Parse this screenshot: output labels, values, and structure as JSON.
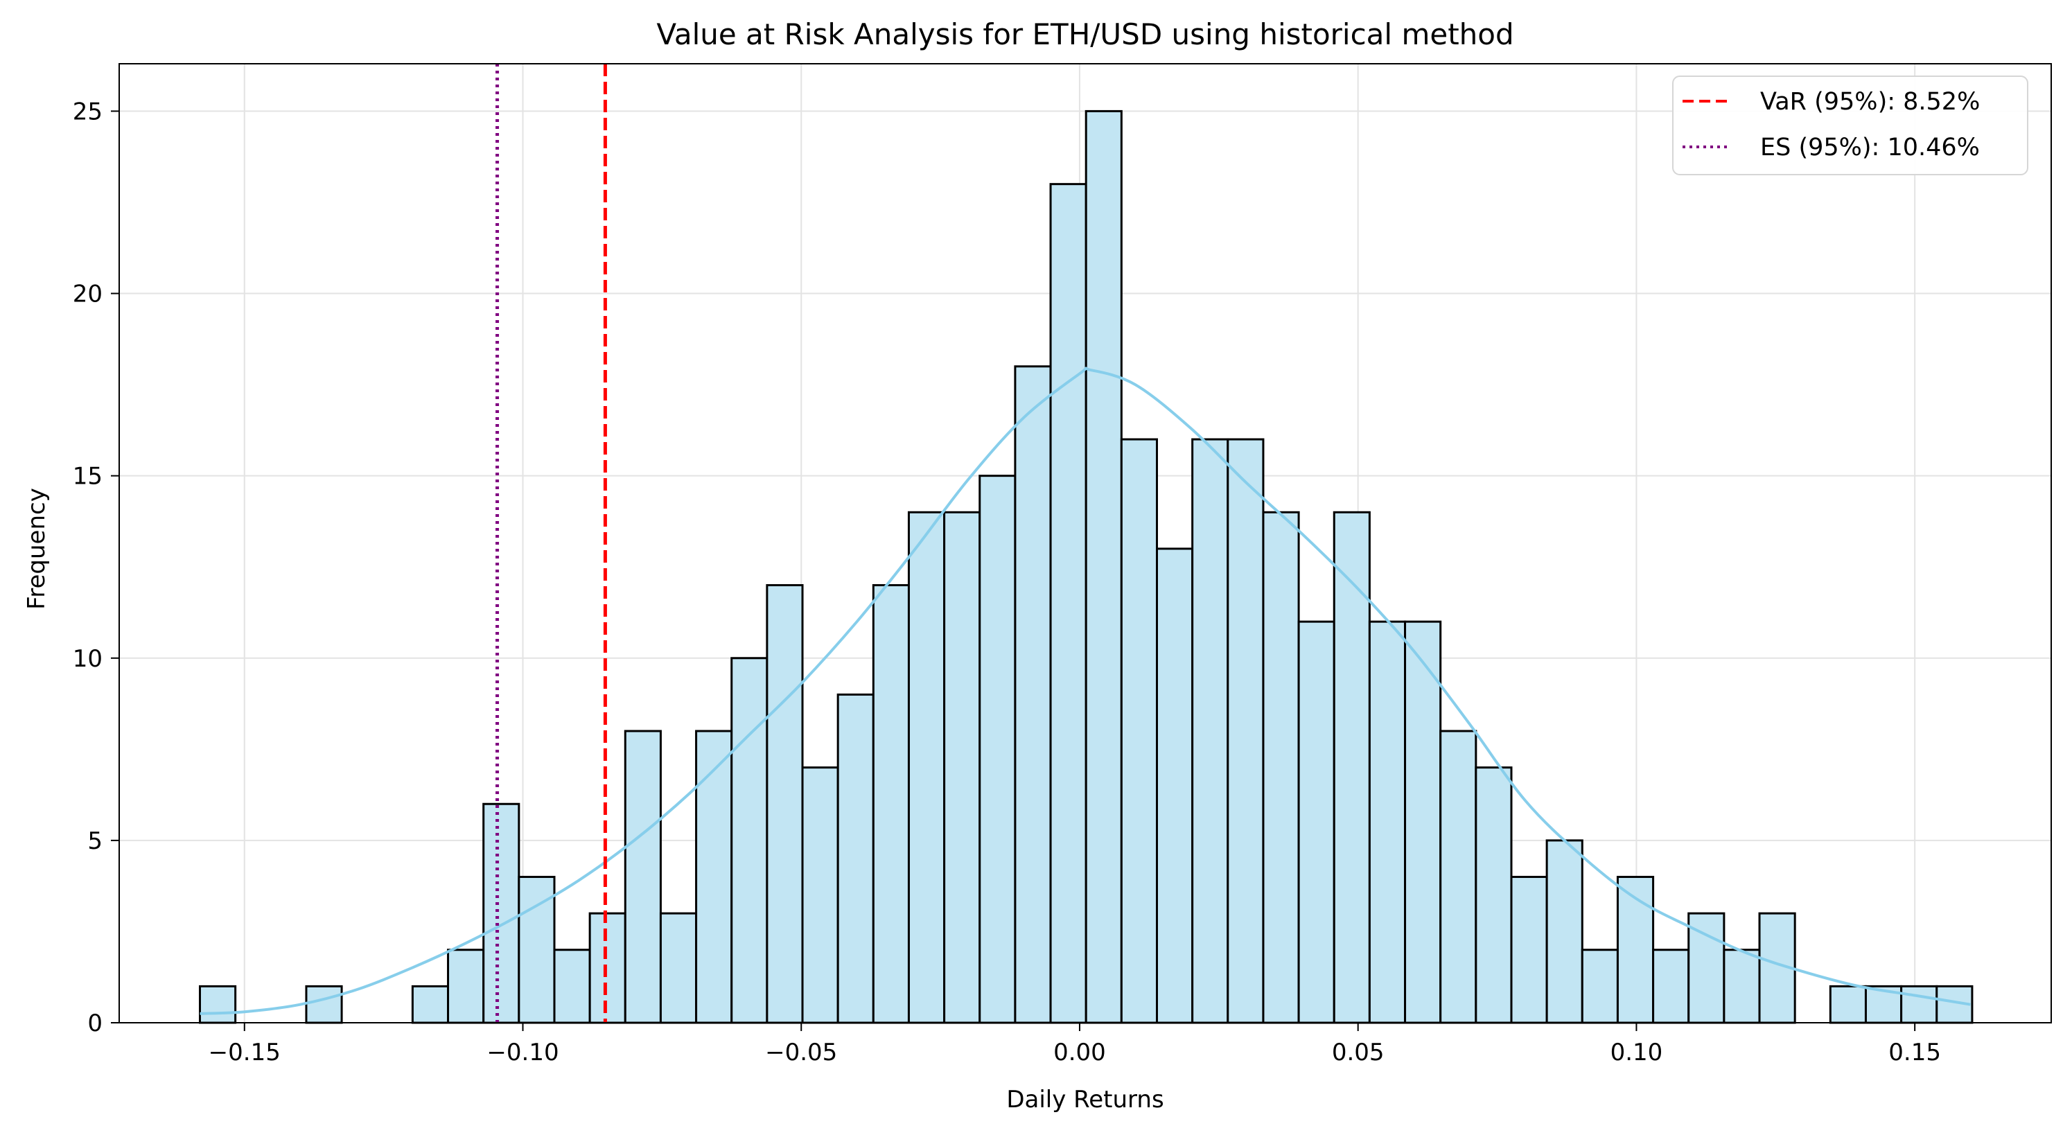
{
  "chart_data": {
    "type": "bar",
    "title": "Value at Risk Analysis for ETH/USD using historical method",
    "xlabel": "Daily Returns",
    "ylabel": "Frequency",
    "xlim": [
      -0.1725,
      0.1745
    ],
    "ylim": [
      0,
      26.3
    ],
    "xticks": [
      -0.15,
      -0.1,
      -0.05,
      0.0,
      0.05,
      0.1,
      0.15
    ],
    "xtick_labels": [
      "−0.15",
      "−0.10",
      "−0.05",
      "0.00",
      "0.05",
      "0.10",
      "0.15"
    ],
    "yticks": [
      0,
      5,
      10,
      15,
      20,
      25
    ],
    "ytick_labels": [
      "0",
      "5",
      "10",
      "15",
      "20",
      "25"
    ],
    "grid": true,
    "histogram": {
      "bin_start": -0.158,
      "bin_width": 0.006366,
      "counts": [
        1,
        0,
        0,
        1,
        0,
        0,
        1,
        2,
        6,
        4,
        2,
        3,
        8,
        3,
        8,
        10,
        12,
        7,
        9,
        12,
        14,
        14,
        15,
        18,
        23,
        25,
        16,
        13,
        16,
        16,
        14,
        11,
        14,
        11,
        11,
        8,
        7,
        4,
        5,
        2,
        4,
        2,
        3,
        2,
        3,
        0,
        1,
        1,
        1,
        1
      ],
      "fill_color": "#c2e5f3",
      "edge_color": "#000000"
    },
    "kde": {
      "name": "KDE",
      "color": "#87ceeb",
      "x": [
        -0.158,
        -0.15,
        -0.14,
        -0.13,
        -0.12,
        -0.11,
        -0.1,
        -0.09,
        -0.08,
        -0.07,
        -0.06,
        -0.05,
        -0.04,
        -0.03,
        -0.02,
        -0.01,
        0.0,
        0.002,
        0.01,
        0.02,
        0.03,
        0.04,
        0.05,
        0.06,
        0.07,
        0.08,
        0.09,
        0.1,
        0.11,
        0.12,
        0.13,
        0.14,
        0.15,
        0.16
      ],
      "y": [
        0.25,
        0.3,
        0.5,
        0.9,
        1.5,
        2.2,
        3.0,
        3.9,
        5.0,
        6.3,
        7.8,
        9.3,
        11.0,
        12.9,
        14.9,
        16.6,
        17.8,
        17.9,
        17.5,
        16.3,
        14.8,
        13.4,
        11.9,
        10.2,
        8.2,
        6.1,
        4.6,
        3.4,
        2.6,
        1.9,
        1.4,
        1.0,
        0.75,
        0.5
      ]
    },
    "lines": [
      {
        "name": "VaR (95%): 8.52%",
        "x": -0.0852,
        "color": "#ff0000",
        "style": "dashed"
      },
      {
        "name": "ES (95%): 10.46%",
        "x": -0.1046,
        "color": "#800080",
        "style": "dotted"
      }
    ],
    "legend": {
      "position": "top-right"
    }
  }
}
